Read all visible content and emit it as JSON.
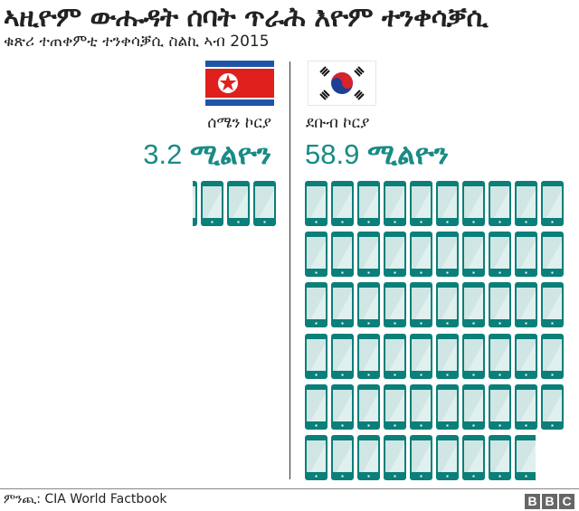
{
  "title": "ኣዚዮም ውሑዳት ሰባት ጥራሕ እዮም ተንቀሳቓሲ",
  "subtitle": "ቁጽሪ ተጠቀምቲ ተንቀሳቓሲ ስልኪ ኣብ 2015",
  "colors": {
    "teal": "#0b7f79",
    "screen": "#cfe6e4",
    "number": "#198b84"
  },
  "chart_data": {
    "type": "pictograph",
    "unit": "1 phone icon = 1 million users",
    "series": [
      {
        "name": "ሰሜን ኮርያ",
        "value": 3.2,
        "value_label": "3.2",
        "unit_label": "ሚልዮን",
        "flag": "north-korea-flag"
      },
      {
        "name": "ደቡብ ኮርያ",
        "value": 58.9,
        "value_label": "58.9",
        "unit_label": "ሚልዮን",
        "flag": "south-korea-flag"
      }
    ]
  },
  "footer": {
    "source": "ምንጪ: CIA World Factbook",
    "logo": [
      "B",
      "B",
      "C"
    ]
  }
}
